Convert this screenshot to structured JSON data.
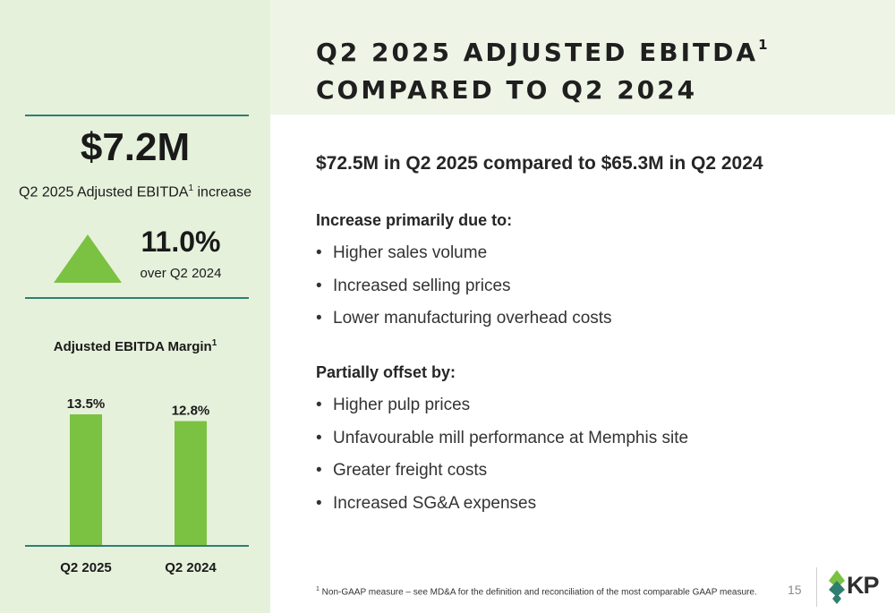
{
  "title": {
    "line1": "Q2 2025 ADJUSTED EBITDA",
    "line1_sup": "1",
    "line2": "COMPARED TO Q2 2024"
  },
  "summary": {
    "big_value": "$7.2M",
    "caption_pre": "Q2 2025 Adjusted EBITDA",
    "caption_sup": "1",
    "caption_post": " increase",
    "percent": "11.0%",
    "percent_caption": "over Q2 2024"
  },
  "margin_chart_title": "Adjusted EBITDA Margin",
  "margin_chart_title_sup": "1",
  "chart_data": {
    "type": "bar",
    "title": "Adjusted EBITDA Margin",
    "categories": [
      "Q2 2025",
      "Q2 2024"
    ],
    "values": [
      13.5,
      12.8
    ],
    "data_labels": [
      "13.5%",
      "12.8%"
    ],
    "ylim": [
      0,
      13.5
    ],
    "grid": false,
    "bar_color": "#7bc142",
    "axis_color": "#2f7f70"
  },
  "main": {
    "subhead": "$72.5M in Q2 2025 compared to $65.3M in Q2 2024",
    "increase_head": "Increase primarily due to:",
    "increase_items": [
      "Higher sales volume",
      "Increased selling prices",
      "Lower manufacturing overhead costs"
    ],
    "offset_head": "Partially offset by:",
    "offset_items": [
      "Higher pulp prices",
      "Unfavourable mill performance at Memphis site",
      "Greater freight costs",
      "Increased SG&A expenses"
    ]
  },
  "bullet_glyph": "•",
  "footnote": {
    "sup": "1",
    "text": " Non-GAAP measure – see MD&A for the definition and reconciliation of the most comparable GAAP measure."
  },
  "page_number": "15",
  "logo": {
    "text": "KP",
    "icon": "leaf-diamond-icon"
  },
  "colors": {
    "accent_green": "#7bc142",
    "teal_rule": "#2f7f70",
    "sidebar_bg": "#e6f1dc",
    "header_bg": "#eef5e6"
  }
}
